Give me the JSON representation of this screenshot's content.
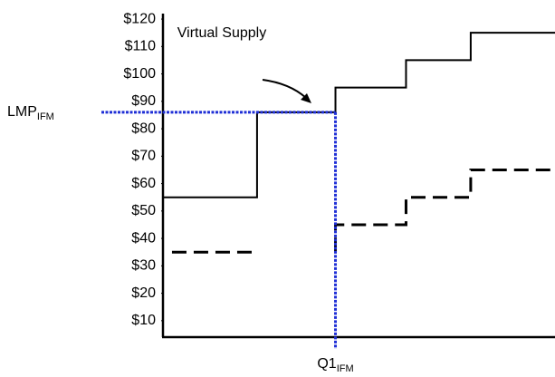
{
  "chart_data": {
    "type": "line",
    "annotations": [
      {
        "text": "Virtual Supply"
      }
    ],
    "lmp": {
      "label": "LMP",
      "sub": "IFM",
      "value": 86
    },
    "q1": {
      "label": "Q1",
      "sub": "IFM",
      "value": 44
    },
    "series": [
      {
        "color": "#000000",
        "style": "solid",
        "x": [
          0,
          24,
          24,
          44,
          44,
          62,
          62,
          78.5,
          78.5,
          100
        ],
        "values": [
          55,
          55,
          86,
          86,
          95,
          95,
          105,
          105,
          115,
          115
        ]
      },
      {
        "color": "#000000",
        "style": "dashed",
        "x": [
          2.3,
          24,
          33,
          44,
          44,
          62,
          62,
          78.5,
          78.5,
          100
        ],
        "values": [
          35,
          35,
          null,
          35,
          45,
          45,
          55,
          55,
          65,
          65
        ]
      }
    ],
    "guide_color": "#1f2fd6",
    "xlim": [
      0,
      100
    ],
    "ylim": [
      4,
      122
    ],
    "yticks": [
      {
        "value": 10,
        "label": "$10"
      },
      {
        "value": 20,
        "label": "$20"
      },
      {
        "value": 30,
        "label": "$30"
      },
      {
        "value": 40,
        "label": "$40"
      },
      {
        "value": 50,
        "label": "$50"
      },
      {
        "value": 60,
        "label": "$60"
      },
      {
        "value": 70,
        "label": "$70"
      },
      {
        "value": 80,
        "label": "$80"
      },
      {
        "value": 90,
        "label": "$90"
      },
      {
        "value": 100,
        "label": "$100"
      },
      {
        "value": 110,
        "label": "$110"
      },
      {
        "value": 120,
        "label": "$120"
      }
    ]
  }
}
